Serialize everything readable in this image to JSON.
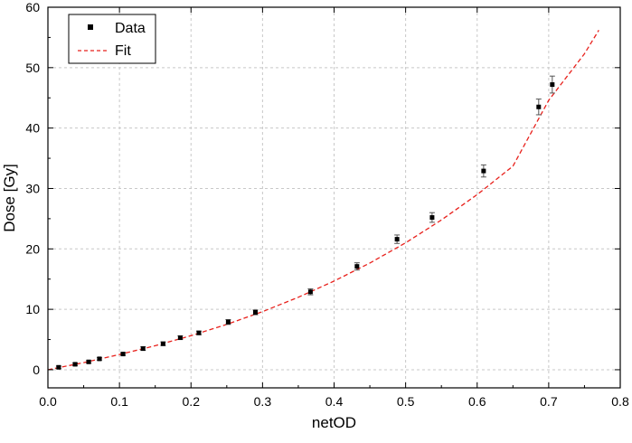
{
  "chart_data": {
    "type": "scatter",
    "xlabel": "netOD",
    "ylabel": "Dose [Gy]",
    "xlim": [
      0.0,
      0.8
    ],
    "ylim": [
      -3,
      60
    ],
    "x_ticks": [
      0.0,
      0.1,
      0.2,
      0.3,
      0.4,
      0.5,
      0.6,
      0.7,
      0.8
    ],
    "x_tick_labels": [
      "0.0",
      "0.1",
      "0.2",
      "0.3",
      "0.4",
      "0.5",
      "0.6",
      "0.7",
      "0.8"
    ],
    "y_ticks": [
      0,
      10,
      20,
      30,
      40,
      50,
      60
    ],
    "y_tick_labels": [
      "0",
      "10",
      "20",
      "30",
      "40",
      "50",
      "60"
    ],
    "grid": true,
    "legend_position": "top-left",
    "series": [
      {
        "name": "Data",
        "kind": "scatter",
        "color": "#000000",
        "x": [
          0.015,
          0.038,
          0.057,
          0.072,
          0.105,
          0.133,
          0.161,
          0.185,
          0.211,
          0.252,
          0.29,
          0.367,
          0.432,
          0.488,
          0.537,
          0.609,
          0.686,
          0.705
        ],
        "y": [
          0.4,
          0.9,
          1.3,
          1.8,
          2.6,
          3.5,
          4.3,
          5.3,
          6.1,
          7.9,
          9.5,
          12.9,
          17.1,
          21.6,
          25.2,
          32.9,
          43.5,
          47.2
        ],
        "error": [
          0.2,
          0.2,
          0.2,
          0.2,
          0.2,
          0.3,
          0.3,
          0.3,
          0.3,
          0.4,
          0.4,
          0.5,
          0.6,
          0.7,
          0.8,
          1.0,
          1.3,
          1.4
        ]
      },
      {
        "name": "Fit",
        "kind": "line",
        "style": "dashed",
        "color": "#e8211c",
        "x": [
          0.0,
          0.05,
          0.1,
          0.15,
          0.2,
          0.25,
          0.3,
          0.35,
          0.4,
          0.45,
          0.5,
          0.55,
          0.6,
          0.65,
          0.7,
          0.75,
          0.77
        ],
        "y": [
          0.0,
          1.18,
          2.52,
          3.98,
          5.64,
          7.51,
          9.61,
          11.99,
          14.67,
          17.67,
          21.0,
          24.79,
          29.0,
          33.7,
          44.6,
          52.3,
          56.2
        ]
      }
    ]
  }
}
